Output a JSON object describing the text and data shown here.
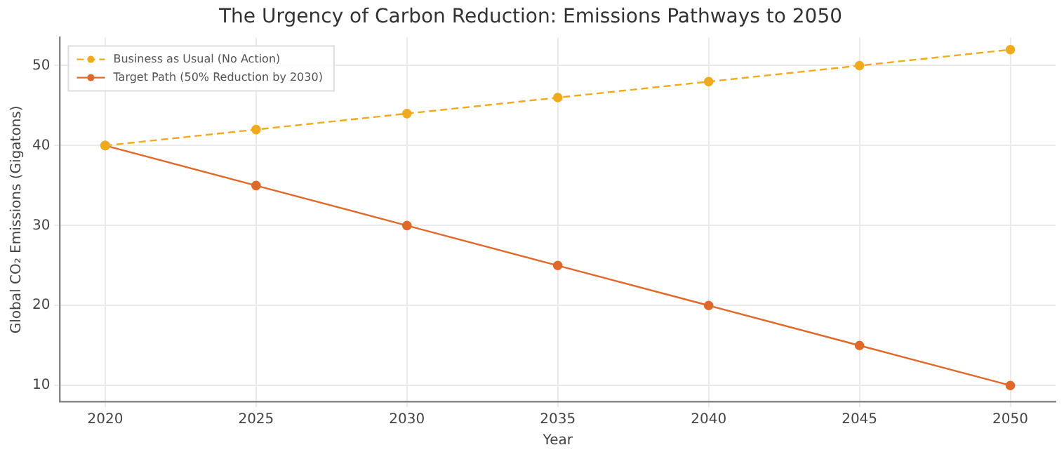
{
  "chart_data": {
    "type": "line",
    "title": "The Urgency of Carbon Reduction: Emissions Pathways to 2050",
    "xlabel": "Year",
    "ylabel": "Global CO₂ Emissions (Gigatons)",
    "x": [
      2020,
      2025,
      2030,
      2035,
      2040,
      2045,
      2050
    ],
    "series": [
      {
        "name": "Business as Usual (No Action)",
        "color": "#f0aa1e",
        "values": [
          40,
          42,
          44,
          46,
          48,
          50,
          52
        ],
        "line_style": "dashed"
      },
      {
        "name": "Target Path (50% Reduction by 2030)",
        "color": "#e0692a",
        "values": [
          40,
          35,
          30,
          25,
          20,
          15,
          10
        ],
        "line_style": "solid"
      }
    ],
    "xlim": [
      2018.5,
      2051.5
    ],
    "xticks": [
      2020,
      2025,
      2030,
      2035,
      2040,
      2045,
      2050
    ],
    "ylim": [
      8,
      53.5
    ],
    "yticks": [
      10,
      20,
      30,
      40,
      50
    ],
    "grid": true,
    "legend": "top left",
    "marker": "circle"
  }
}
